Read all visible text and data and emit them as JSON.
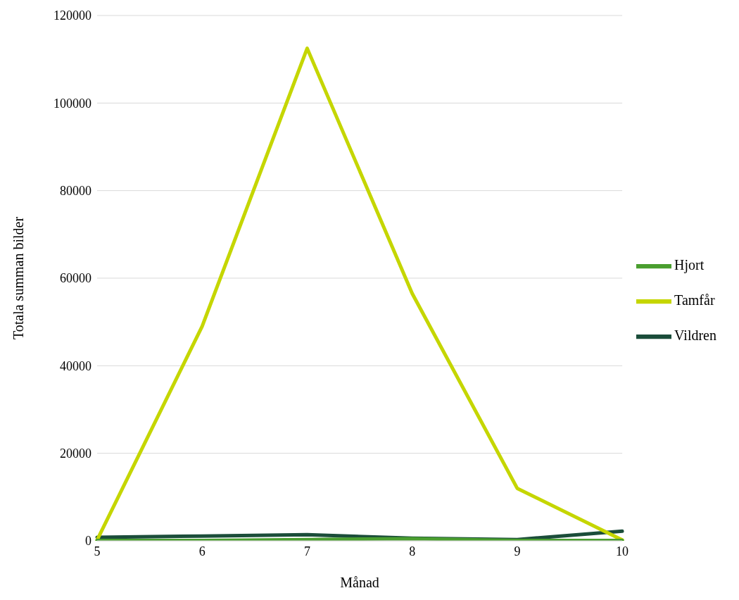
{
  "chart_data": {
    "type": "line",
    "xlabel": "Månad",
    "ylabel": "Totala summan bilder",
    "categories": [
      "5",
      "6",
      "7",
      "8",
      "9",
      "10"
    ],
    "series": [
      {
        "name": "Vildren",
        "color": "#1b4d3a",
        "values": [
          800,
          1100,
          1400,
          600,
          300,
          2200
        ]
      },
      {
        "name": "Tamfår",
        "color": "#c5d600",
        "values": [
          200,
          49000,
          112500,
          56500,
          12000,
          200
        ]
      },
      {
        "name": "Hjort",
        "color": "#4a9e2f",
        "values": [
          100,
          100,
          300,
          500,
          100,
          100
        ]
      }
    ],
    "ylim": [
      0,
      120000
    ],
    "yticks": [
      0,
      20000,
      40000,
      60000,
      80000,
      100000,
      120000
    ],
    "grid": "y",
    "legend": "right",
    "marker": "none",
    "line_style": "solid"
  }
}
